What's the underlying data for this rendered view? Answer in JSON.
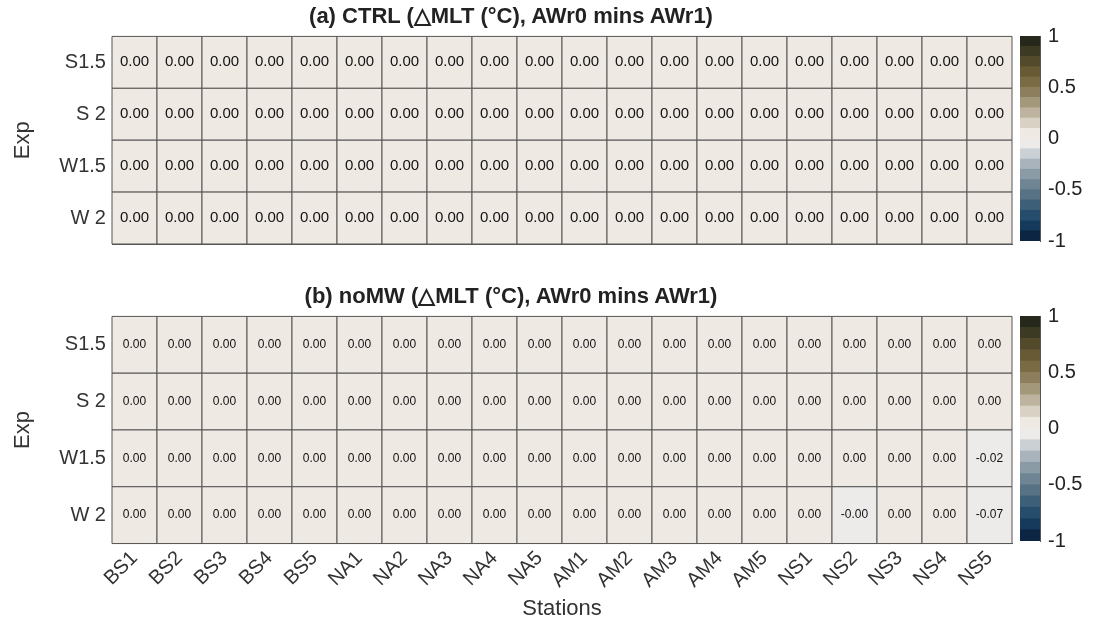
{
  "chart_data": [
    {
      "type": "heatmap",
      "title": "(a) CTRL (△MLT (°C), AWr0 mins AWr1)",
      "ylabel": "Exp",
      "categories": [
        null,
        null,
        null,
        null,
        null,
        null,
        null,
        null,
        null,
        null,
        null,
        null,
        null,
        null,
        null,
        null,
        null,
        null,
        null,
        null
      ],
      "y_categories": [
        "S1.5",
        "S 2",
        "W1.5",
        "W 2"
      ],
      "cells": [
        [
          0,
          0,
          0,
          0,
          0,
          0,
          0,
          0,
          0,
          0,
          0,
          0,
          0,
          0,
          0,
          0,
          0,
          0,
          0,
          0
        ],
        [
          0,
          0,
          0,
          0,
          0,
          0,
          0,
          0,
          0,
          0,
          0,
          0,
          0,
          0,
          0,
          0,
          0,
          0,
          0,
          0
        ],
        [
          0,
          0,
          0,
          0,
          0,
          0,
          0,
          0,
          0,
          0,
          0,
          0,
          0,
          0,
          0,
          0,
          0,
          0,
          0,
          0
        ],
        [
          0,
          0,
          0,
          0,
          0,
          0,
          0,
          0,
          0,
          0,
          0,
          0,
          0,
          0,
          0,
          0,
          0,
          0,
          0,
          0
        ]
      ],
      "clim": [
        -1,
        1
      ],
      "cticks": [
        -1,
        -0.5,
        0,
        0.5,
        1
      ],
      "colors": [
        "#0b2543",
        "#153a5c",
        "#264e6c",
        "#3d6078",
        "#567284",
        "#6f8594",
        "#8a9ba6",
        "#a8b3bb",
        "#cbd0d4",
        "#ecebea",
        "#efe9e4",
        "#d8d1c4",
        "#bdb39f",
        "#a4987a",
        "#8d7f5d",
        "#7a6b45",
        "#675a34",
        "#524a2b",
        "#3c3a22",
        "#25281a"
      ],
      "tick_labels": "y"
    },
    {
      "type": "heatmap",
      "title": "(b) noMW (△MLT (°C), AWr0 mins AWr1)",
      "ylabel": "Exp",
      "xlabel": "Stations",
      "categories": [
        "BS1",
        "BS2",
        "BS3",
        "BS4",
        "BS5",
        "NA1",
        "NA2",
        "NA3",
        "NA4",
        "NA5",
        "AM1",
        "AM2",
        "AM3",
        "AM4",
        "AM5",
        "NS1",
        "NS2",
        "NS3",
        "NS4",
        "NS5"
      ],
      "y_categories": [
        "S1.5",
        "S 2",
        "W1.5",
        "W 2"
      ],
      "cells": [
        [
          0,
          0,
          0,
          0,
          0,
          0,
          0,
          0,
          0,
          0,
          0,
          0,
          0,
          0,
          0,
          0,
          0,
          0,
          0,
          0
        ],
        [
          0,
          0,
          0,
          0,
          0,
          0,
          0,
          0,
          0,
          0,
          0,
          0,
          0,
          0,
          0,
          0,
          0,
          0,
          0,
          0
        ],
        [
          0,
          0,
          0,
          0,
          0,
          0,
          0,
          0,
          0,
          0,
          0,
          0,
          0,
          0,
          0,
          0,
          0,
          0,
          0,
          -0.02
        ],
        [
          0,
          0,
          0,
          0,
          0,
          0,
          0,
          0,
          0,
          0,
          0,
          0,
          0,
          0,
          0,
          0,
          -0.0,
          0,
          0,
          -0.07
        ]
      ],
      "cell_labels": [
        [
          "0.00",
          "0.00",
          "0.00",
          "0.00",
          "0.00",
          "0.00",
          "0.00",
          "0.00",
          "0.00",
          "0.00",
          "0.00",
          "0.00",
          "0.00",
          "0.00",
          "0.00",
          "0.00",
          "0.00",
          "0.00",
          "0.00",
          "0.00"
        ],
        [
          "0.00",
          "0.00",
          "0.00",
          "0.00",
          "0.00",
          "0.00",
          "0.00",
          "0.00",
          "0.00",
          "0.00",
          "0.00",
          "0.00",
          "0.00",
          "0.00",
          "0.00",
          "0.00",
          "0.00",
          "0.00",
          "0.00",
          "0.00"
        ],
        [
          "0.00",
          "0.00",
          "0.00",
          "0.00",
          "0.00",
          "0.00",
          "0.00",
          "0.00",
          "0.00",
          "0.00",
          "0.00",
          "0.00",
          "0.00",
          "0.00",
          "0.00",
          "0.00",
          "0.00",
          "0.00",
          "0.00",
          "-0.02"
        ],
        [
          "0.00",
          "0.00",
          "0.00",
          "0.00",
          "0.00",
          "0.00",
          "0.00",
          "0.00",
          "0.00",
          "0.00",
          "0.00",
          "0.00",
          "0.00",
          "0.00",
          "0.00",
          "0.00",
          "-0.00",
          "0.00",
          "0.00",
          "-0.07"
        ]
      ],
      "clim": [
        -1,
        1
      ],
      "cticks": [
        -1,
        -0.5,
        0,
        0.5,
        1
      ],
      "colors": [
        "#0b2543",
        "#153a5c",
        "#264e6c",
        "#3d6078",
        "#567284",
        "#6f8594",
        "#8a9ba6",
        "#a8b3bb",
        "#cbd0d4",
        "#ecebea",
        "#efe9e4",
        "#d8d1c4",
        "#bdb39f",
        "#a4987a",
        "#8d7f5d",
        "#7a6b45",
        "#675a34",
        "#524a2b",
        "#3c3a22",
        "#25281a"
      ]
    }
  ]
}
